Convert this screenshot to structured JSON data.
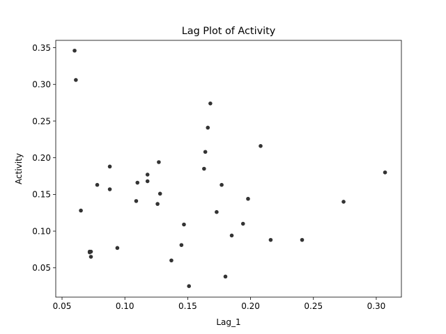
{
  "chart_data": {
    "type": "scatter",
    "title": "Lag Plot of Activity",
    "xlabel": "Lag_1",
    "ylabel": "Activity",
    "xlim": [
      0.045,
      0.32
    ],
    "ylim": [
      0.01,
      0.36
    ],
    "x_ticks": [
      0.05,
      0.1,
      0.15,
      0.2,
      0.25,
      0.3
    ],
    "x_tick_labels": [
      "0.05",
      "0.10",
      "0.15",
      "0.20",
      "0.25",
      "0.30"
    ],
    "y_ticks": [
      0.05,
      0.1,
      0.15,
      0.2,
      0.25,
      0.3,
      0.35
    ],
    "y_tick_labels": [
      "0.05",
      "0.10",
      "0.15",
      "0.20",
      "0.25",
      "0.30",
      "0.35"
    ],
    "grid": false,
    "marker_color": "#333333",
    "points": [
      {
        "x": 0.06,
        "y": 0.346
      },
      {
        "x": 0.061,
        "y": 0.306
      },
      {
        "x": 0.065,
        "y": 0.128
      },
      {
        "x": 0.072,
        "y": 0.072
      },
      {
        "x": 0.072,
        "y": 0.071
      },
      {
        "x": 0.073,
        "y": 0.072
      },
      {
        "x": 0.073,
        "y": 0.065
      },
      {
        "x": 0.078,
        "y": 0.163
      },
      {
        "x": 0.088,
        "y": 0.188
      },
      {
        "x": 0.088,
        "y": 0.157
      },
      {
        "x": 0.094,
        "y": 0.077
      },
      {
        "x": 0.109,
        "y": 0.141
      },
      {
        "x": 0.11,
        "y": 0.166
      },
      {
        "x": 0.118,
        "y": 0.177
      },
      {
        "x": 0.118,
        "y": 0.168
      },
      {
        "x": 0.126,
        "y": 0.137
      },
      {
        "x": 0.127,
        "y": 0.194
      },
      {
        "x": 0.128,
        "y": 0.151
      },
      {
        "x": 0.137,
        "y": 0.06
      },
      {
        "x": 0.145,
        "y": 0.081
      },
      {
        "x": 0.147,
        "y": 0.109
      },
      {
        "x": 0.151,
        "y": 0.025
      },
      {
        "x": 0.163,
        "y": 0.185
      },
      {
        "x": 0.164,
        "y": 0.208
      },
      {
        "x": 0.166,
        "y": 0.241
      },
      {
        "x": 0.168,
        "y": 0.274
      },
      {
        "x": 0.173,
        "y": 0.126
      },
      {
        "x": 0.177,
        "y": 0.163
      },
      {
        "x": 0.18,
        "y": 0.038
      },
      {
        "x": 0.185,
        "y": 0.094
      },
      {
        "x": 0.194,
        "y": 0.11
      },
      {
        "x": 0.198,
        "y": 0.144
      },
      {
        "x": 0.208,
        "y": 0.216
      },
      {
        "x": 0.216,
        "y": 0.088
      },
      {
        "x": 0.241,
        "y": 0.088
      },
      {
        "x": 0.274,
        "y": 0.14
      },
      {
        "x": 0.307,
        "y": 0.18
      }
    ]
  }
}
